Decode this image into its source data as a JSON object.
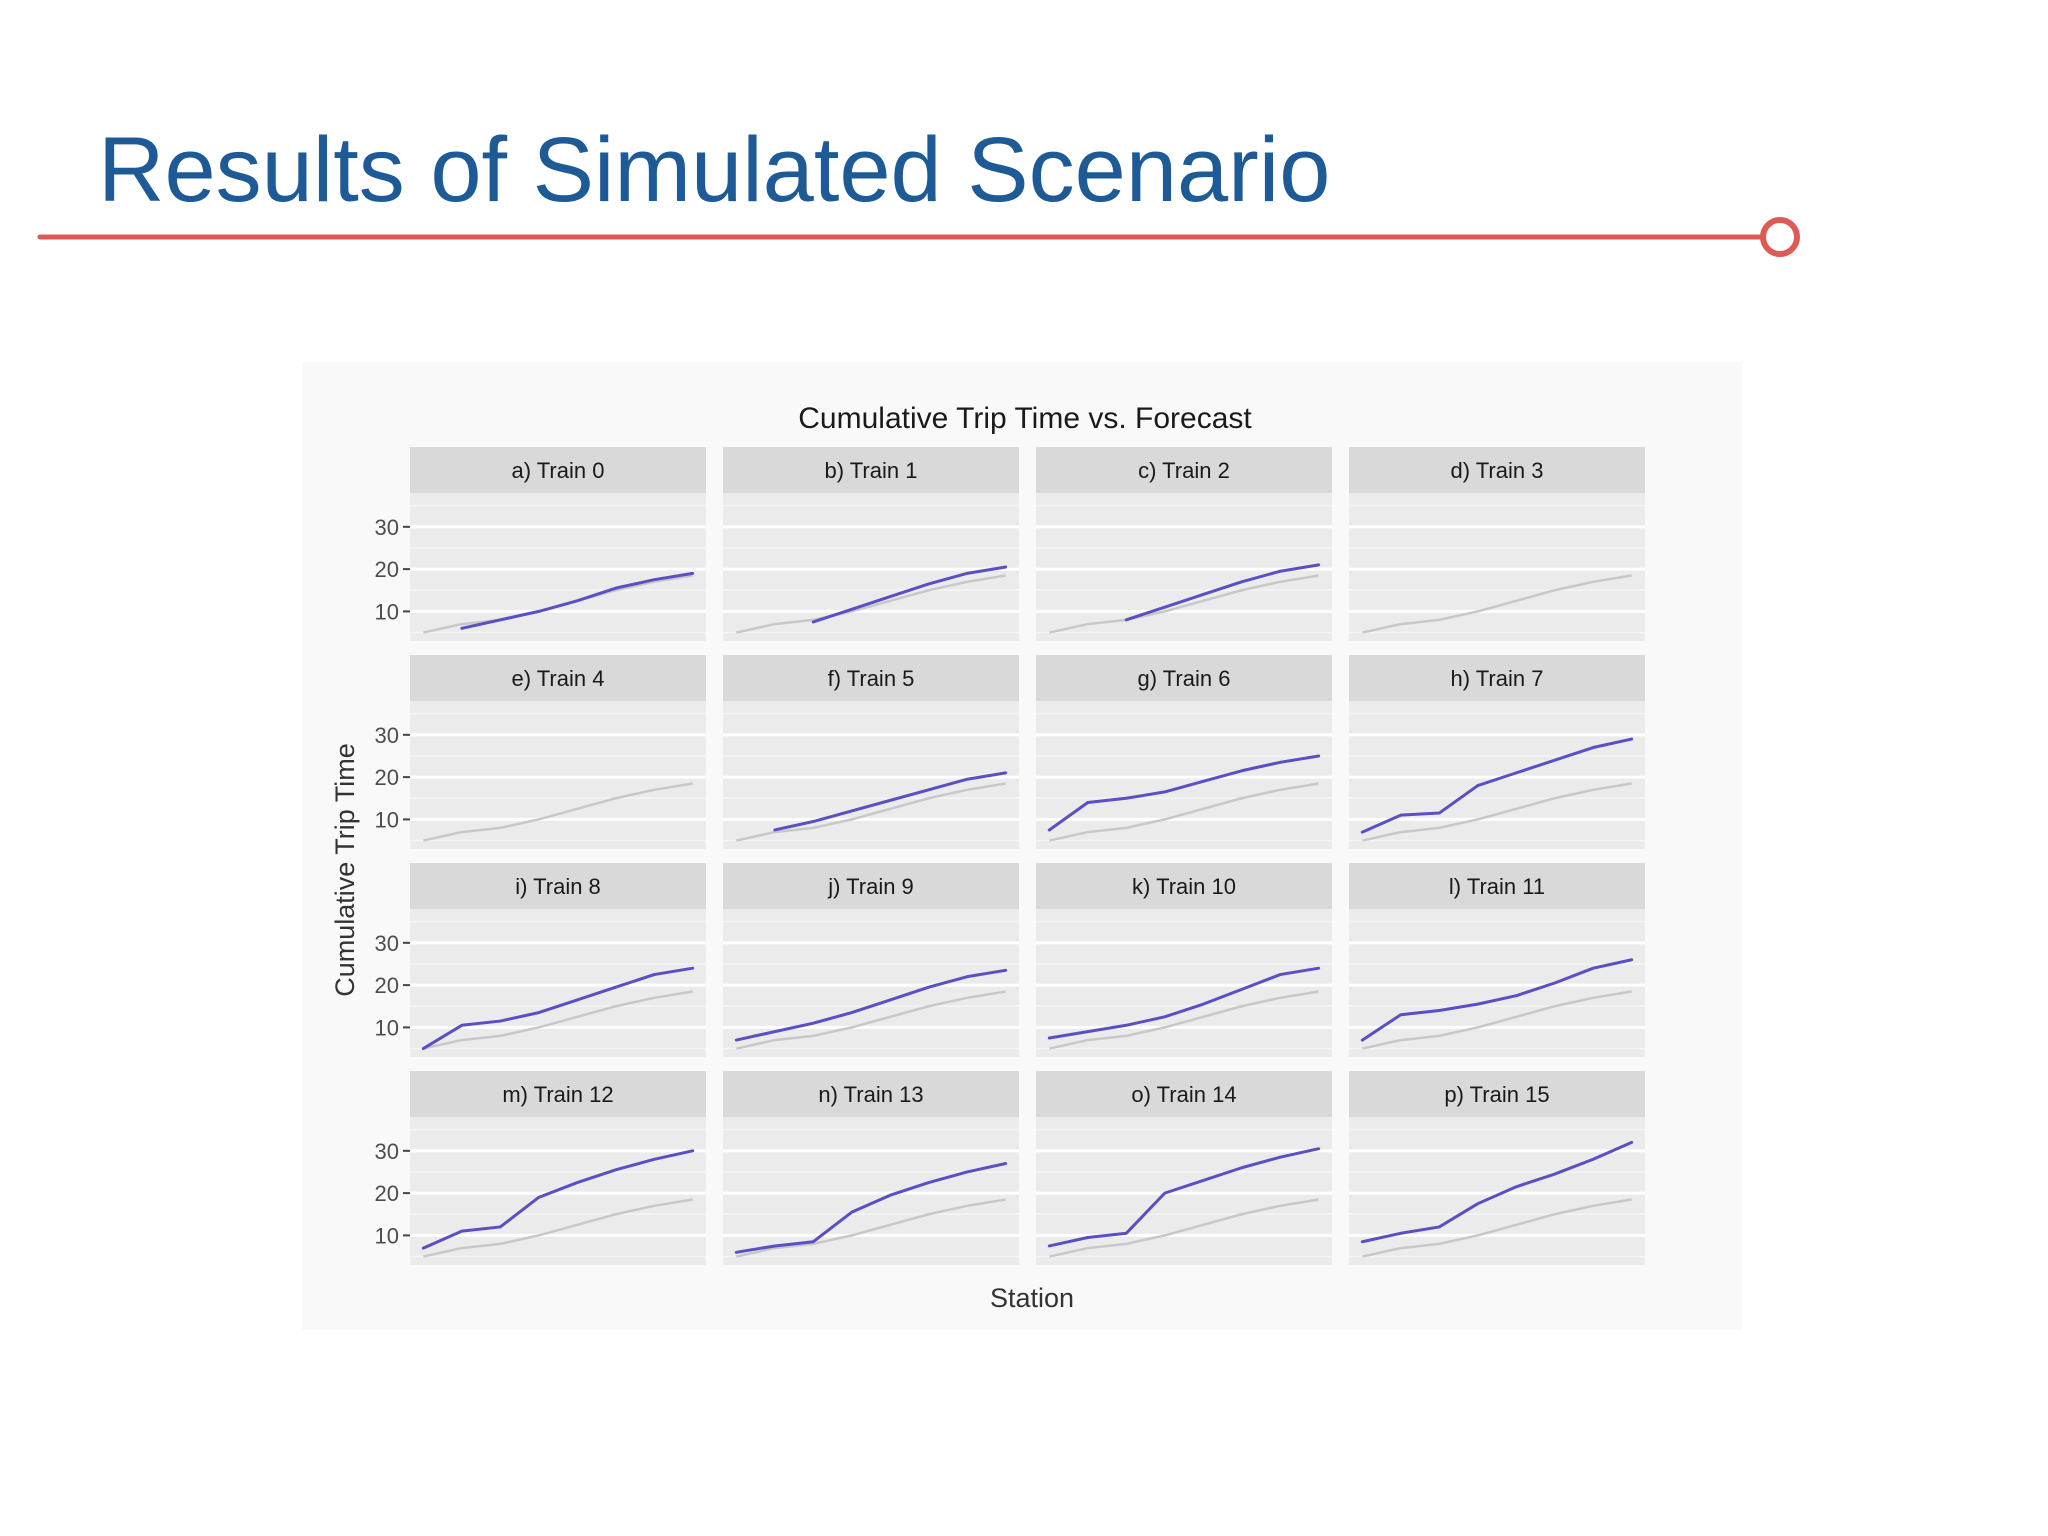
{
  "slide": {
    "title": "Results of Simulated Scenario",
    "accent_color": "#e05a55",
    "title_color": "#1d5a96"
  },
  "chart_data": {
    "type": "line",
    "title": "Cumulative Trip Time vs. Forecast",
    "xlabel": "Station",
    "ylabel": "Cumulative Trip Time",
    "yticks": [
      10,
      20,
      30
    ],
    "ylim": [
      3,
      38
    ],
    "x": [
      1,
      2,
      3,
      4,
      5,
      6,
      7,
      8
    ],
    "grid": true,
    "facet_layout": "4x4",
    "forecast_color": "#c8c8c8",
    "actual_color": "#5a4fc4",
    "forecast": [
      5,
      7,
      8,
      10,
      12.5,
      15,
      17,
      18.5
    ],
    "panels": [
      {
        "label": "a) Train 0",
        "actual": [
          null,
          6,
          8,
          10,
          12.5,
          15.5,
          17.5,
          19
        ]
      },
      {
        "label": "b) Train 1",
        "actual": [
          null,
          null,
          7.5,
          10.5,
          13.5,
          16.5,
          19,
          20.5
        ]
      },
      {
        "label": "c) Train 2",
        "actual": [
          null,
          null,
          8,
          11,
          14,
          17,
          19.5,
          21
        ]
      },
      {
        "label": "d) Train 3",
        "actual": [
          null,
          null,
          null,
          null,
          null,
          null,
          null,
          null
        ]
      },
      {
        "label": "e) Train 4",
        "actual": [
          null,
          null,
          null,
          null,
          null,
          null,
          null,
          null
        ]
      },
      {
        "label": "f) Train 5",
        "actual": [
          null,
          7.5,
          9.5,
          12,
          14.5,
          17,
          19.5,
          21
        ]
      },
      {
        "label": "g) Train 6",
        "actual": [
          7.5,
          14,
          15,
          16.5,
          19,
          21.5,
          23.5,
          25
        ]
      },
      {
        "label": "h) Train 7",
        "actual": [
          7,
          11,
          11.5,
          18,
          21,
          24,
          27,
          29
        ]
      },
      {
        "label": "i) Train 8",
        "actual": [
          5,
          10.5,
          11.5,
          13.5,
          16.5,
          19.5,
          22.5,
          24
        ]
      },
      {
        "label": "j) Train 9",
        "actual": [
          7,
          9,
          11,
          13.5,
          16.5,
          19.5,
          22,
          23.5
        ]
      },
      {
        "label": "k) Train 10",
        "actual": [
          7.5,
          9,
          10.5,
          12.5,
          15.5,
          19,
          22.5,
          24
        ]
      },
      {
        "label": "l) Train 11",
        "actual": [
          7,
          13,
          14,
          15.5,
          17.5,
          20.5,
          24,
          26
        ]
      },
      {
        "label": "m) Train 12",
        "actual": [
          7,
          11,
          12,
          19,
          22.5,
          25.5,
          28,
          30
        ]
      },
      {
        "label": "n) Train 13",
        "actual": [
          6,
          7.5,
          8.5,
          15.5,
          19.5,
          22.5,
          25,
          27
        ]
      },
      {
        "label": "o) Train 14",
        "actual": [
          7.5,
          9.5,
          10.5,
          20,
          23,
          26,
          28.5,
          30.5
        ]
      },
      {
        "label": "p) Train 15",
        "actual": [
          8.5,
          10.5,
          12,
          17.5,
          21.5,
          24.5,
          28,
          32
        ]
      }
    ]
  }
}
